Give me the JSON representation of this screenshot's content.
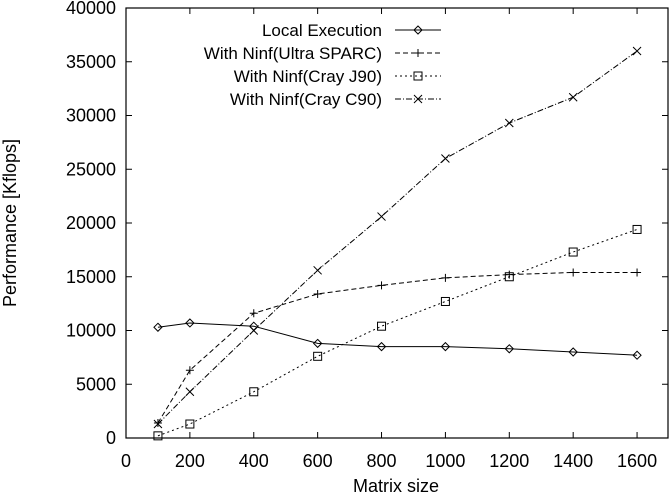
{
  "chart_data": {
    "type": "line",
    "title": "",
    "xlabel": "Matrix size",
    "ylabel": "Performance [Kflops]",
    "xlim": [
      0,
      1700
    ],
    "ylim": [
      0,
      40000
    ],
    "xticks": [
      0,
      200,
      400,
      600,
      800,
      1000,
      1200,
      1400,
      1600
    ],
    "yticks": [
      0,
      5000,
      10000,
      15000,
      20000,
      25000,
      30000,
      35000,
      40000
    ],
    "grid": false,
    "legend_position": "top-right",
    "series": [
      {
        "name": "Local Execution",
        "marker": "diamond",
        "line_style": "solid",
        "color": "#000000",
        "x": [
          100,
          200,
          400,
          600,
          800,
          1000,
          1200,
          1400,
          1600
        ],
        "y": [
          10300,
          10700,
          10400,
          8800,
          8500,
          8500,
          8300,
          8000,
          7700
        ]
      },
      {
        "name": "With Ninf(Ultra SPARC)",
        "marker": "plus",
        "line_style": "dashed",
        "color": "#000000",
        "x": [
          100,
          200,
          400,
          600,
          800,
          1000,
          1200,
          1400,
          1600
        ],
        "y": [
          1400,
          6300,
          11600,
          13400,
          14200,
          14900,
          15200,
          15400,
          15400
        ]
      },
      {
        "name": "With Ninf(Cray J90)",
        "marker": "square",
        "line_style": "dotted",
        "color": "#000000",
        "x": [
          100,
          200,
          400,
          600,
          800,
          1000,
          1200,
          1400,
          1600
        ],
        "y": [
          200,
          1300,
          4300,
          7600,
          10400,
          12700,
          15000,
          17300,
          19400
        ]
      },
      {
        "name": "With Ninf(Cray C90)",
        "marker": "cross",
        "line_style": "dashdot",
        "color": "#000000",
        "x": [
          100,
          200,
          400,
          600,
          800,
          1000,
          1200,
          1400,
          1600
        ],
        "y": [
          1300,
          4300,
          10000,
          15600,
          20600,
          26000,
          29300,
          31700,
          36000
        ]
      }
    ]
  }
}
